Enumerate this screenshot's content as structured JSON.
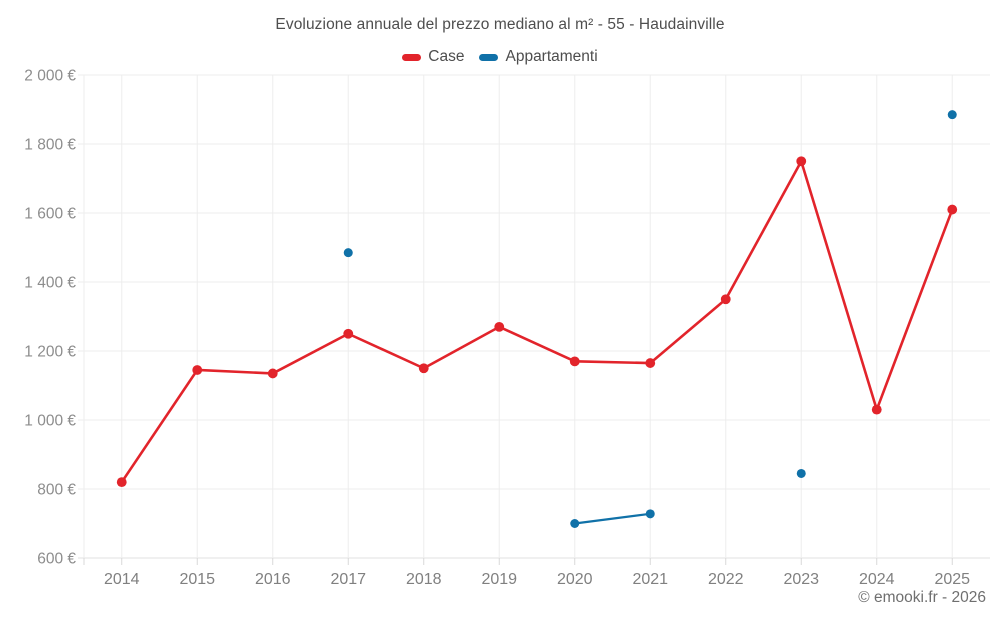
{
  "title": "Evoluzione annuale del prezzo mediano al m² - 55 - Haudainville",
  "legend": [
    {
      "label": "Case",
      "color": "#e2242b"
    },
    {
      "label": "Appartamenti",
      "color": "#1071a8"
    }
  ],
  "footer": "© emooki.fr - 2026",
  "colors": {
    "series_case": "#e2242b",
    "series_appartamenti": "#1071a8",
    "gridline": "#ededed",
    "axis_line": "#e0e0e0",
    "tick": "#d8d8d8",
    "y_label": "#8d8d8d",
    "x_label": "#808080",
    "title_text": "#4e4e4e",
    "background": "#ffffff"
  },
  "chart_data": {
    "type": "line",
    "title": "Evoluzione annuale del prezzo mediano al m² - 55 - Haudainville",
    "categories": [
      "2014",
      "2015",
      "2016",
      "2017",
      "2018",
      "2019",
      "2020",
      "2021",
      "2022",
      "2023",
      "2024",
      "2025"
    ],
    "series": [
      {
        "name": "Case",
        "color": "#e2242b",
        "values": [
          820,
          1145,
          1135,
          1250,
          1150,
          1270,
          1170,
          1165,
          1350,
          1750,
          1030,
          1610
        ]
      },
      {
        "name": "Appartamenti",
        "color": "#1071a8",
        "values": [
          null,
          null,
          null,
          1485,
          null,
          null,
          700,
          728,
          null,
          845,
          null,
          1885
        ]
      }
    ],
    "xlabel": "",
    "ylabel": "",
    "ylim": [
      600,
      2000
    ],
    "ytick_step": 200,
    "ytick_suffix": " €",
    "grid": true,
    "legend_position": "top"
  }
}
